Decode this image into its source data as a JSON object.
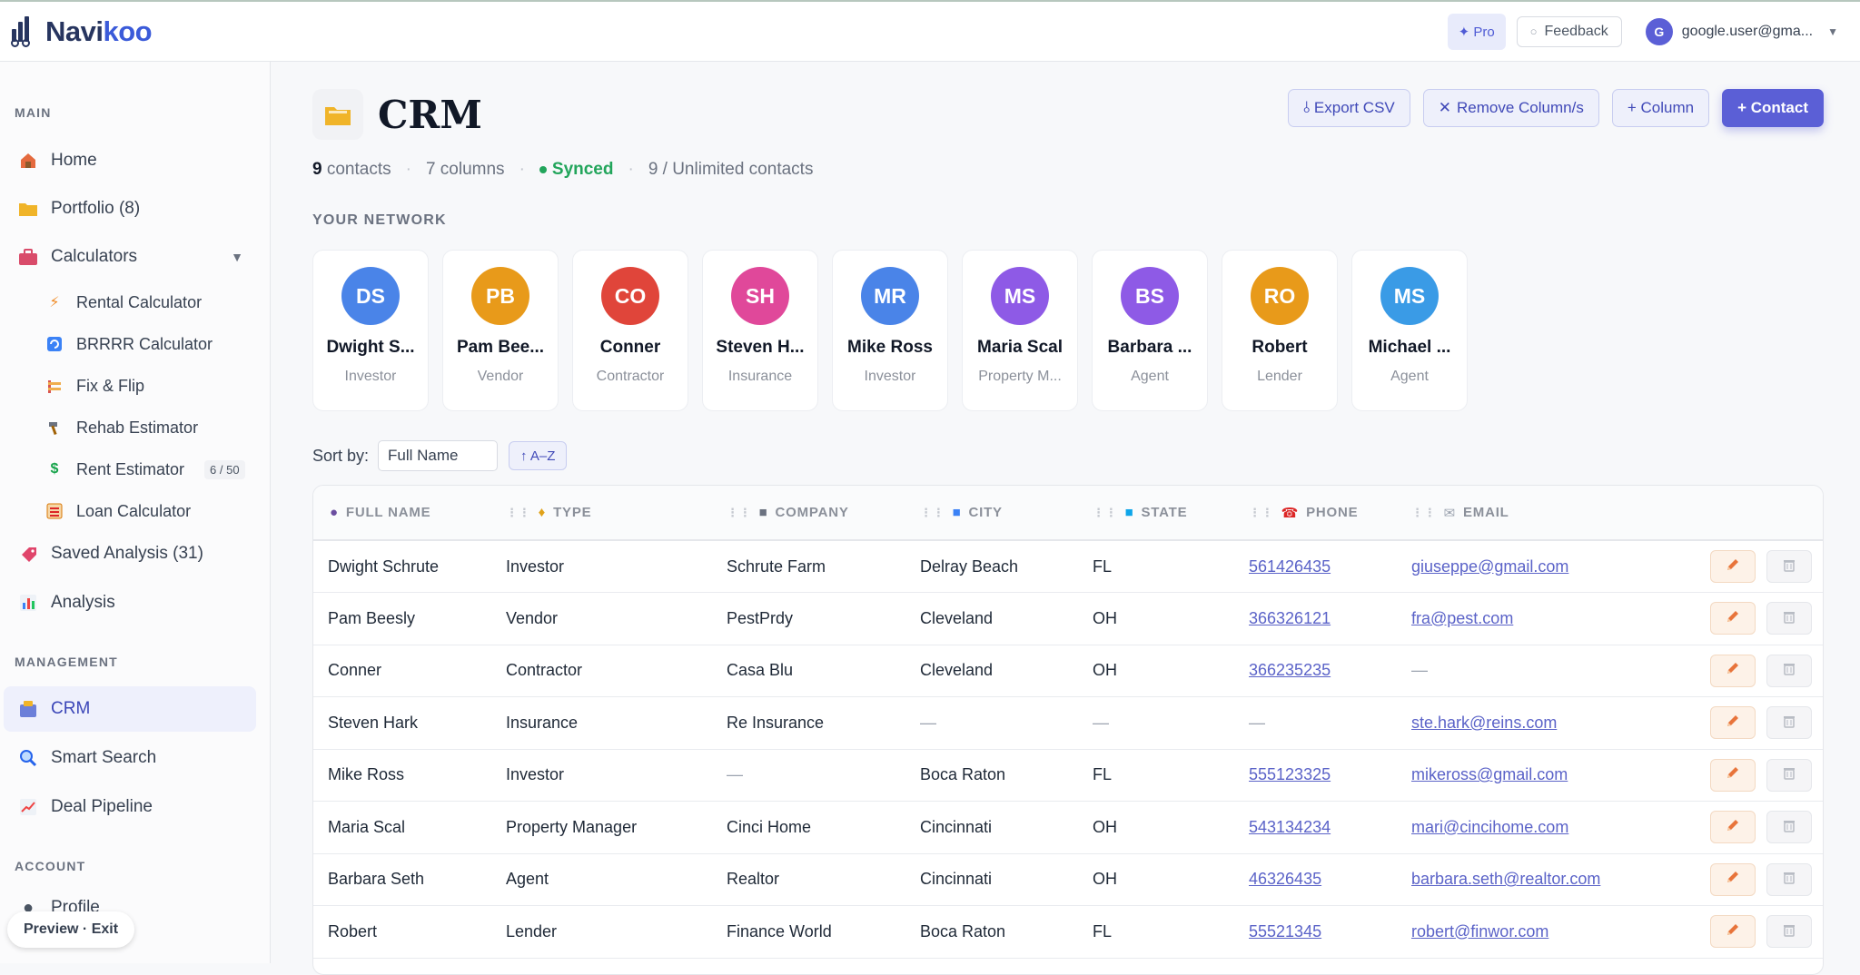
{
  "brand": {
    "name_part1": "Navi",
    "name_part2": "koo"
  },
  "topbar": {
    "pro_label": "✦ Pro",
    "feedback_label": "Feedback",
    "user_initial": "G",
    "user_email": "google.user@gma..."
  },
  "sidebar": {
    "main_title": "MAIN",
    "home": "Home",
    "portfolio": "Portfolio (8)",
    "calculators": "Calculators",
    "rental": "Rental Calculator",
    "brrrr": "BRRRR Calculator",
    "fixflip": "Fix & Flip",
    "rehab": "Rehab Estimator",
    "rent": "Rent Estimator",
    "rent_badge": "6 / 50",
    "loan": "Loan Calculator",
    "saved": "Saved Analysis (31)",
    "analysis": "Analysis",
    "management_title": "MANAGEMENT",
    "crm": "CRM",
    "smart_search": "Smart Search",
    "deal_pipeline": "Deal Pipeline",
    "account_title": "ACCOUNT",
    "profile": "Profile",
    "preview": "Preview · Exit"
  },
  "page": {
    "title": "CRM",
    "export_label": "⫰ Export CSV",
    "remove_label": "Remove Column/s",
    "add_column_label": "+ Column",
    "add_contact_label": "+ Contact",
    "count_num": "9",
    "count_label": "contacts",
    "columns_label": "7 columns",
    "synced_label": "Synced",
    "limit_label": "9 / Unlimited contacts",
    "network_title": "YOUR NETWORK",
    "sort_label": "Sort by:",
    "sort_value": "Full Name",
    "sort_dir": "↑ A–Z"
  },
  "network": [
    {
      "initials": "DS",
      "name": "Dwight S...",
      "role": "Investor",
      "color": "#4a84e8"
    },
    {
      "initials": "PB",
      "name": "Pam Bee...",
      "role": "Vendor",
      "color": "#e89a1a"
    },
    {
      "initials": "CO",
      "name": "Conner",
      "role": "Contractor",
      "color": "#e0453a"
    },
    {
      "initials": "SH",
      "name": "Steven H...",
      "role": "Insurance",
      "color": "#e0489a"
    },
    {
      "initials": "MR",
      "name": "Mike Ross",
      "role": "Investor",
      "color": "#4a84e8"
    },
    {
      "initials": "MS",
      "name": "Maria Scal",
      "role": "Property M...",
      "color": "#8e5ae6"
    },
    {
      "initials": "BS",
      "name": "Barbara ...",
      "role": "Agent",
      "color": "#8e5ae6"
    },
    {
      "initials": "RO",
      "name": "Robert",
      "role": "Lender",
      "color": "#e89a1a"
    },
    {
      "initials": "MS",
      "name": "Michael ...",
      "role": "Agent",
      "color": "#3a9be6"
    }
  ],
  "table": {
    "headers": [
      "FULL NAME",
      "TYPE",
      "COMPANY",
      "CITY",
      "STATE",
      "PHONE",
      "EMAIL"
    ],
    "rows": [
      [
        "Dwight Schrute",
        "Investor",
        "Schrute Farm",
        "Delray Beach",
        "FL",
        "561426435",
        "giuseppe@gmail.com"
      ],
      [
        "Pam Beesly",
        "Vendor",
        "PestPrdy",
        "Cleveland",
        "OH",
        "366326121",
        "fra@pest.com"
      ],
      [
        "Conner",
        "Contractor",
        "Casa Blu",
        "Cleveland",
        "OH",
        "366235235",
        "—"
      ],
      [
        "Steven Hark",
        "Insurance",
        "Re Insurance",
        "—",
        "—",
        "—",
        "ste.hark@reins.com"
      ],
      [
        "Mike Ross",
        "Investor",
        "—",
        "Boca Raton",
        "FL",
        "555123325",
        "mikeross@gmail.com"
      ],
      [
        "Maria Scal",
        "Property Manager",
        "Cinci Home",
        "Cincinnati",
        "OH",
        "543134234",
        "mari@cincihome.com"
      ],
      [
        "Barbara Seth",
        "Agent",
        "Realtor",
        "Cincinnati",
        "OH",
        "46326435",
        "barbara.seth@realtor.com"
      ],
      [
        "Robert",
        "Lender",
        "Finance World",
        "Boca Raton",
        "FL",
        "55521345",
        "robert@finwor.com"
      ]
    ]
  }
}
